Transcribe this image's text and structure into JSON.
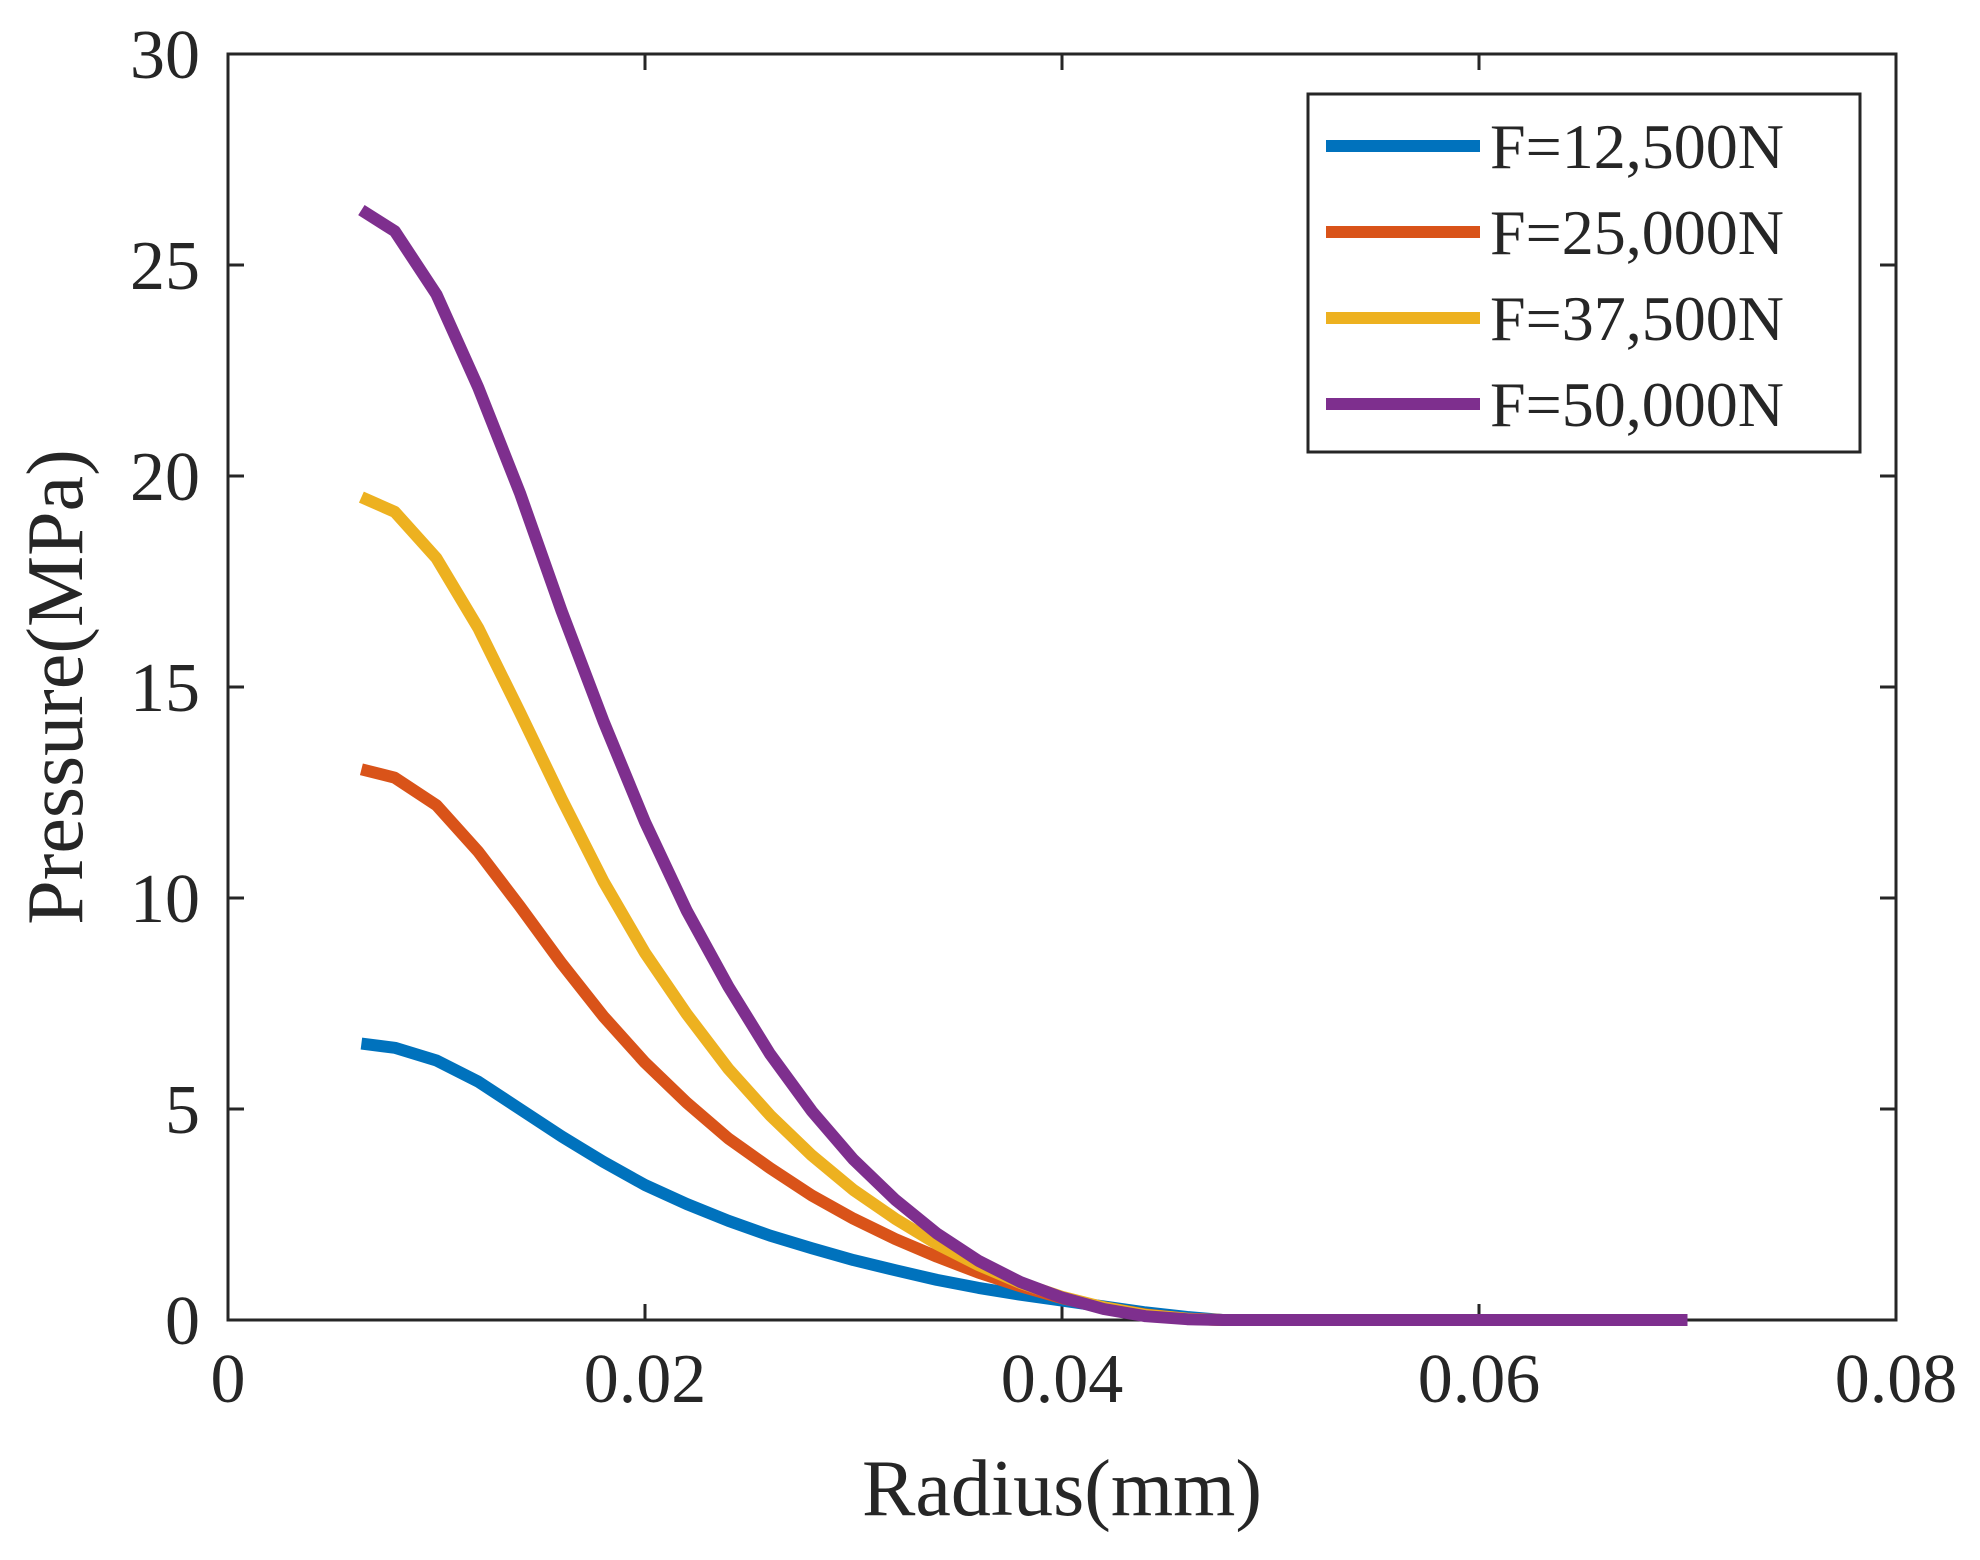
{
  "chart_data": {
    "type": "line",
    "title": "",
    "xlabel": "Radius(mm)",
    "ylabel": "Pressure(MPa)",
    "xlim": [
      0,
      0.08
    ],
    "ylim": [
      0,
      30
    ],
    "xticks": [
      0,
      0.02,
      0.04,
      0.06,
      0.08
    ],
    "xtick_labels": [
      "0",
      "0.02",
      "0.04",
      "0.06",
      "0.08"
    ],
    "yticks": [
      0,
      5,
      10,
      15,
      20,
      25,
      30
    ],
    "ytick_labels": [
      "0",
      "5",
      "10",
      "15",
      "20",
      "25",
      "30"
    ],
    "grid": false,
    "legend_position": "top-right",
    "x": [
      0.0064,
      0.008,
      0.01,
      0.012,
      0.014,
      0.016,
      0.018,
      0.02,
      0.022,
      0.024,
      0.026,
      0.028,
      0.03,
      0.032,
      0.034,
      0.036,
      0.038,
      0.04,
      0.042,
      0.044,
      0.046,
      0.0477,
      0.05,
      0.055,
      0.06,
      0.065,
      0.07
    ],
    "series": [
      {
        "name": "F=12,500N",
        "color": "#0072BD",
        "values": [
          6.55,
          6.45,
          6.15,
          5.65,
          5.0,
          4.35,
          3.75,
          3.2,
          2.75,
          2.35,
          2.0,
          1.7,
          1.42,
          1.18,
          0.95,
          0.76,
          0.6,
          0.46,
          0.32,
          0.18,
          0.07,
          0,
          0,
          0,
          0,
          0,
          0
        ]
      },
      {
        "name": "F=25,000N",
        "color": "#D95319",
        "values": [
          13.05,
          12.85,
          12.2,
          11.1,
          9.8,
          8.45,
          7.2,
          6.1,
          5.15,
          4.3,
          3.6,
          2.95,
          2.4,
          1.92,
          1.5,
          1.12,
          0.8,
          0.52,
          0.3,
          0.13,
          0.03,
          0,
          0,
          0,
          0,
          0,
          0
        ]
      },
      {
        "name": "F=37,500N",
        "color": "#EDB120",
        "values": [
          19.5,
          19.15,
          18.05,
          16.4,
          14.4,
          12.35,
          10.4,
          8.7,
          7.25,
          5.95,
          4.85,
          3.9,
          3.08,
          2.4,
          1.8,
          1.3,
          0.88,
          0.55,
          0.3,
          0.12,
          0.03,
          0,
          0,
          0,
          0,
          0,
          0
        ]
      },
      {
        "name": "F=50,000N",
        "color": "#7E2F8E",
        "values": [
          26.3,
          25.8,
          24.3,
          22.1,
          19.6,
          16.8,
          14.2,
          11.8,
          9.7,
          7.9,
          6.3,
          4.95,
          3.8,
          2.85,
          2.05,
          1.4,
          0.9,
          0.53,
          0.26,
          0.09,
          0.02,
          0,
          0,
          0,
          0,
          0,
          0
        ]
      }
    ]
  }
}
